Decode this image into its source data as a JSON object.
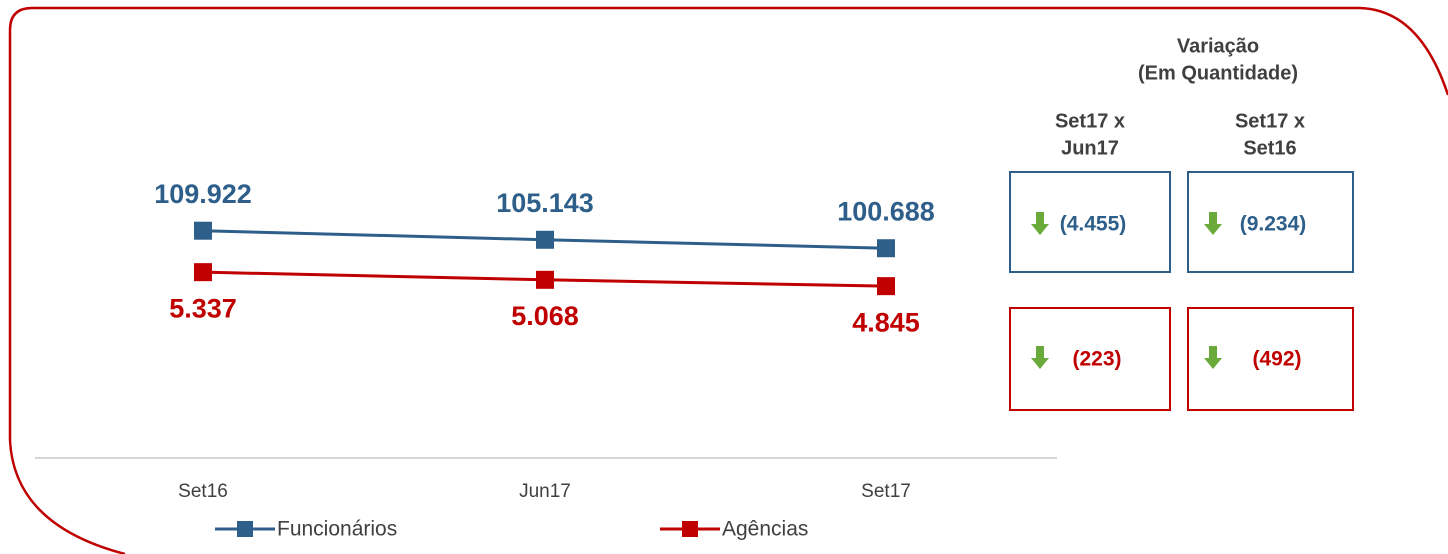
{
  "chart_data": {
    "type": "line",
    "categories": [
      "Set16",
      "Jun17",
      "Set17"
    ],
    "series": [
      {
        "name": "Funcionários",
        "color": "#2e5f8a",
        "values": [
          109922,
          105143,
          100688
        ],
        "value_labels": [
          "109.922",
          "105.143",
          "100.688"
        ]
      },
      {
        "name": "Agências",
        "color": "#c00000",
        "axis": "y2",
        "values": [
          5337,
          5068,
          4845
        ],
        "value_labels": [
          "5.337",
          "5.068",
          "4.845"
        ]
      }
    ],
    "ylim": [
      -10000,
      200000
    ],
    "y2lim": [
      -1200,
      12800
    ],
    "grid": false
  },
  "variation": {
    "title": [
      "Variação",
      "(Em Quantidade)"
    ],
    "columns": [
      [
        "Set17 x",
        "Jun17"
      ],
      [
        "Set17 x",
        "Set16"
      ]
    ],
    "rows": [
      [
        "(4.455)",
        "(9.234)"
      ],
      [
        "(223)",
        "(492)"
      ]
    ]
  }
}
